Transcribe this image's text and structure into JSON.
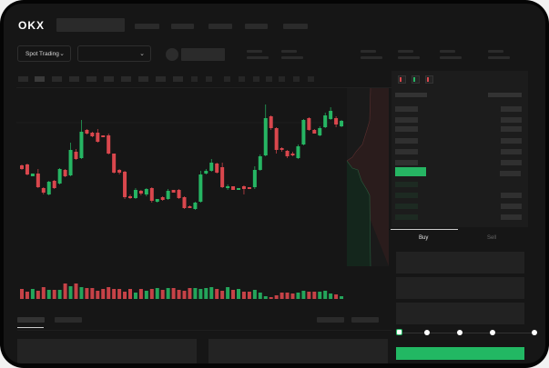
{
  "header": {
    "logo": "OKX"
  },
  "toolbar": {
    "market_select": "Spot Trading",
    "chevron": "⌄"
  },
  "order_book": {
    "icons": [
      "book-both-icon",
      "book-bids-icon",
      "book-asks-icon"
    ]
  },
  "trade_panel": {
    "tabs": [
      {
        "label": "Buy",
        "active": true
      },
      {
        "label": "Sell",
        "active": false
      }
    ],
    "slider_percent": 0
  },
  "colors": {
    "up": "#26b563",
    "down": "#d9474d",
    "background": "#161616",
    "accent": "#22b863"
  },
  "chart_data": {
    "type": "candlestick",
    "candles": [
      [
        68,
        69,
        63,
        64
      ],
      [
        69,
        70,
        57,
        58
      ],
      [
        56,
        59,
        56,
        59
      ],
      [
        59,
        64,
        43,
        44
      ],
      [
        43,
        44,
        36,
        38
      ],
      [
        36,
        51,
        35,
        50
      ],
      [
        51,
        52,
        42,
        43
      ],
      [
        48,
        65,
        47,
        64
      ],
      [
        63,
        64,
        55,
        56
      ],
      [
        57,
        93,
        56,
        85
      ],
      [
        83,
        86,
        74,
        75
      ],
      [
        76,
        118,
        75,
        105
      ],
      [
        107,
        108,
        102,
        103
      ],
      [
        104,
        105,
        99,
        100
      ],
      [
        104,
        108,
        93,
        94
      ],
      [
        101,
        101,
        99,
        99
      ],
      [
        101,
        103,
        80,
        81
      ],
      [
        81,
        81,
        59,
        60
      ],
      [
        63,
        64,
        58,
        60
      ],
      [
        61,
        62,
        31,
        33
      ],
      [
        34,
        36,
        31,
        32
      ],
      [
        32,
        43,
        31,
        41
      ],
      [
        40,
        41,
        35,
        37
      ],
      [
        36,
        43,
        34,
        42
      ],
      [
        43,
        44,
        27,
        29
      ],
      [
        28,
        31,
        27,
        31
      ],
      [
        33,
        34,
        29,
        30
      ],
      [
        31,
        42,
        30,
        40
      ],
      [
        41,
        41,
        38,
        38
      ],
      [
        41,
        42,
        31,
        32
      ],
      [
        33,
        34,
        20,
        21
      ],
      [
        23,
        24,
        21,
        21
      ],
      [
        20,
        28,
        19,
        27
      ],
      [
        28,
        62,
        27,
        58
      ],
      [
        59,
        64,
        58,
        62
      ],
      [
        62,
        75,
        61,
        71
      ],
      [
        70,
        71,
        59,
        60
      ],
      [
        66,
        71,
        43,
        44
      ],
      [
        43,
        47,
        41,
        45
      ],
      [
        45,
        45,
        41,
        41
      ],
      [
        41,
        43,
        41,
        43
      ],
      [
        45,
        46,
        36,
        42
      ],
      [
        44,
        44,
        42,
        42
      ],
      [
        44,
        67,
        42,
        63
      ],
      [
        63,
        80,
        62,
        78
      ],
      [
        79,
        135,
        78,
        120
      ],
      [
        122,
        123,
        107,
        109
      ],
      [
        109,
        110,
        81,
        85
      ],
      [
        87,
        88,
        83,
        85
      ],
      [
        84,
        85,
        76,
        78
      ],
      [
        81,
        83,
        78,
        79
      ],
      [
        76,
        91,
        75,
        89
      ],
      [
        91,
        119,
        90,
        118
      ],
      [
        120,
        121,
        106,
        107
      ],
      [
        107,
        108,
        103,
        103
      ],
      [
        101,
        111,
        100,
        109
      ],
      [
        110,
        126,
        109,
        123
      ],
      [
        119,
        132,
        118,
        128
      ],
      [
        120,
        122,
        110,
        113
      ],
      [
        111,
        118,
        110,
        117
      ]
    ],
    "volumes": [
      11,
      8,
      11,
      9,
      13,
      10,
      10,
      10,
      17,
      14,
      17,
      13,
      12,
      12,
      9,
      11,
      13,
      11,
      11,
      8,
      11,
      7,
      11,
      9,
      11,
      12,
      10,
      12,
      12,
      10,
      9,
      12,
      12,
      11,
      12,
      13,
      11,
      9,
      13,
      10,
      11,
      8,
      8,
      10,
      7,
      3,
      2,
      4,
      7,
      7,
      6,
      7,
      9,
      8,
      8,
      8,
      9,
      6,
      5,
      3
    ]
  }
}
